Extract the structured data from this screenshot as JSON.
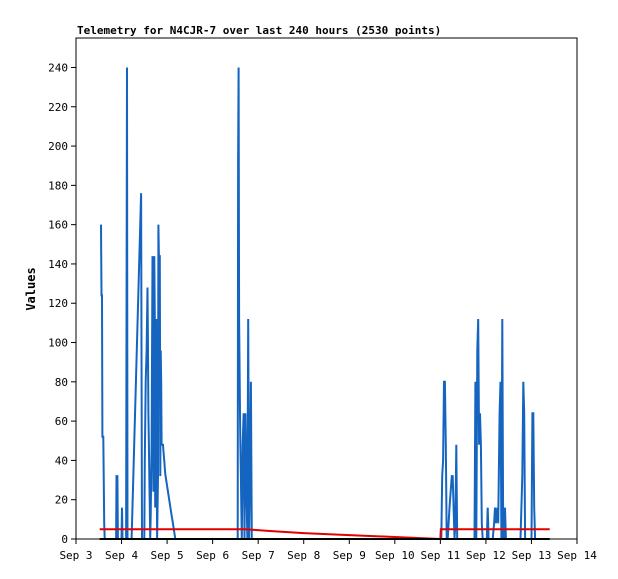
{
  "chart_data": {
    "type": "line",
    "title": "Telemetry for N4CJR-7 over last 240 hours (2530 points)",
    "xlabel": "",
    "ylabel": "Values",
    "x_ticks": [
      "Sep 3",
      "Sep 4",
      "Sep 5",
      "Sep 6",
      "Sep 7",
      "Sep 8",
      "Sep 9",
      "Sep 10",
      "Sep 11",
      "Sep 12",
      "Sep 13",
      "Sep 14"
    ],
    "xlim": [
      3.0,
      14.0
    ],
    "ylim": [
      0,
      255
    ],
    "y_ticks": [
      0,
      20,
      40,
      60,
      80,
      100,
      120,
      140,
      160,
      180,
      200,
      220,
      240
    ],
    "grid": false,
    "colors": {
      "series_blue": "#1565c0",
      "series_red": "#e00000",
      "series_black": "#000000",
      "axis": "#000000",
      "background": "#ffffff"
    },
    "series": [
      {
        "color": "#1565c0",
        "x": [
          3.55,
          3.56,
          3.57,
          3.58,
          3.6,
          3.62,
          3.63,
          3.65,
          3.68,
          3.72,
          3.88,
          3.89,
          3.91,
          3.92,
          3.93,
          4.0,
          4.01,
          4.02,
          4.1,
          4.12,
          4.13,
          4.14,
          4.15,
          4.22,
          4.43,
          4.45,
          4.47,
          4.5,
          4.51,
          4.53,
          4.55,
          4.57,
          4.58,
          4.59,
          4.6,
          4.61,
          4.62,
          4.63,
          4.64,
          4.66,
          4.68,
          4.7,
          4.72,
          4.73,
          4.74,
          4.76,
          4.78,
          4.8,
          4.81,
          4.82,
          4.84,
          4.85,
          4.86,
          4.87,
          4.88,
          4.9,
          4.91,
          4.92,
          4.93,
          4.94,
          4.95,
          4.96,
          4.98,
          5.0,
          5.02,
          5.04,
          5.06,
          5.08,
          5.1,
          5.12,
          5.14,
          5.16,
          5.18,
          5.2,
          6.55,
          6.56,
          6.57,
          6.58,
          6.6,
          6.61,
          6.62,
          6.63,
          6.64,
          6.66,
          6.68,
          6.7,
          6.72,
          6.74,
          6.76,
          6.78,
          6.8,
          6.82,
          6.84,
          6.86,
          6.88,
          6.9,
          6.92,
          6.94,
          6.96,
          6.98,
          7.0,
          7.02,
          7.06,
          11.0,
          11.02,
          11.04,
          11.06,
          11.08,
          11.1,
          11.12,
          11.14,
          11.16,
          11.2,
          11.25,
          11.27,
          11.29,
          11.31,
          11.33,
          11.35,
          11.37,
          11.4,
          11.42,
          11.45,
          11.5,
          11.55,
          11.75,
          11.77,
          11.79,
          11.81,
          11.83,
          11.85,
          11.87,
          11.89,
          11.91,
          11.93,
          11.95,
          11.97,
          12.0,
          12.02,
          12.04,
          12.06,
          12.1,
          12.15,
          12.18,
          12.2,
          12.22,
          12.25,
          12.27,
          12.3,
          12.32,
          12.34,
          12.36,
          12.38,
          12.4,
          12.42,
          12.44,
          12.46,
          12.48,
          12.5,
          12.55,
          12.6,
          12.65,
          12.7,
          12.74,
          12.76,
          12.78,
          12.8,
          12.82,
          12.84,
          12.86,
          12.9,
          12.92,
          12.94,
          12.96,
          12.98,
          13.0,
          13.02,
          13.04,
          13.06,
          13.08,
          13.1,
          13.12,
          13.15,
          13.2,
          13.25,
          13.35
        ],
        "y": [
          160,
          124,
          124,
          52,
          52,
          8,
          0,
          0,
          0,
          0,
          0,
          32,
          32,
          0,
          0,
          0,
          16,
          0,
          0,
          240,
          0,
          0,
          0,
          0,
          176,
          0,
          0,
          0,
          40,
          80,
          96,
          128,
          96,
          64,
          48,
          32,
          16,
          0,
          12,
          48,
          144,
          24,
          144,
          112,
          16,
          112,
          0,
          32,
          160,
          144,
          144,
          32,
          96,
          80,
          48,
          48,
          48,
          45,
          42,
          39,
          36,
          33,
          30,
          27,
          24,
          21,
          18,
          15,
          12,
          9,
          6,
          3,
          0,
          0,
          0,
          192,
          240,
          112,
          64,
          48,
          32,
          16,
          0,
          48,
          64,
          0,
          64,
          32,
          0,
          112,
          0,
          32,
          80,
          0,
          0,
          0,
          0,
          0,
          0,
          0,
          0,
          0,
          0,
          0,
          0,
          32,
          40,
          80,
          80,
          48,
          0,
          0,
          16,
          32,
          32,
          16,
          0,
          8,
          48,
          0,
          0,
          0,
          0,
          0,
          0,
          0,
          80,
          0,
          96,
          112,
          48,
          64,
          48,
          8,
          0,
          0,
          0,
          0,
          0,
          16,
          0,
          0,
          0,
          8,
          16,
          8,
          16,
          8,
          64,
          80,
          0,
          112,
          0,
          0,
          16,
          0,
          0,
          0,
          0,
          0,
          0,
          0,
          0,
          0,
          0,
          16,
          32,
          80,
          64,
          0,
          0,
          0,
          0,
          0,
          0,
          0,
          64,
          64,
          16,
          0,
          0,
          0,
          0,
          0,
          0,
          0
        ]
      },
      {
        "color": "#e00000",
        "x": [
          3.52,
          4.4,
          5.8,
          6.7,
          7.3,
          8.0,
          9.0,
          10.0,
          11.0,
          11.01,
          13.35,
          13.4
        ],
        "y": [
          5,
          5,
          5,
          5,
          4,
          3,
          2,
          1,
          0,
          5,
          5,
          5
        ]
      },
      {
        "color": "#000000",
        "x": [
          3.52,
          13.4
        ],
        "y": [
          0,
          0
        ]
      }
    ]
  }
}
